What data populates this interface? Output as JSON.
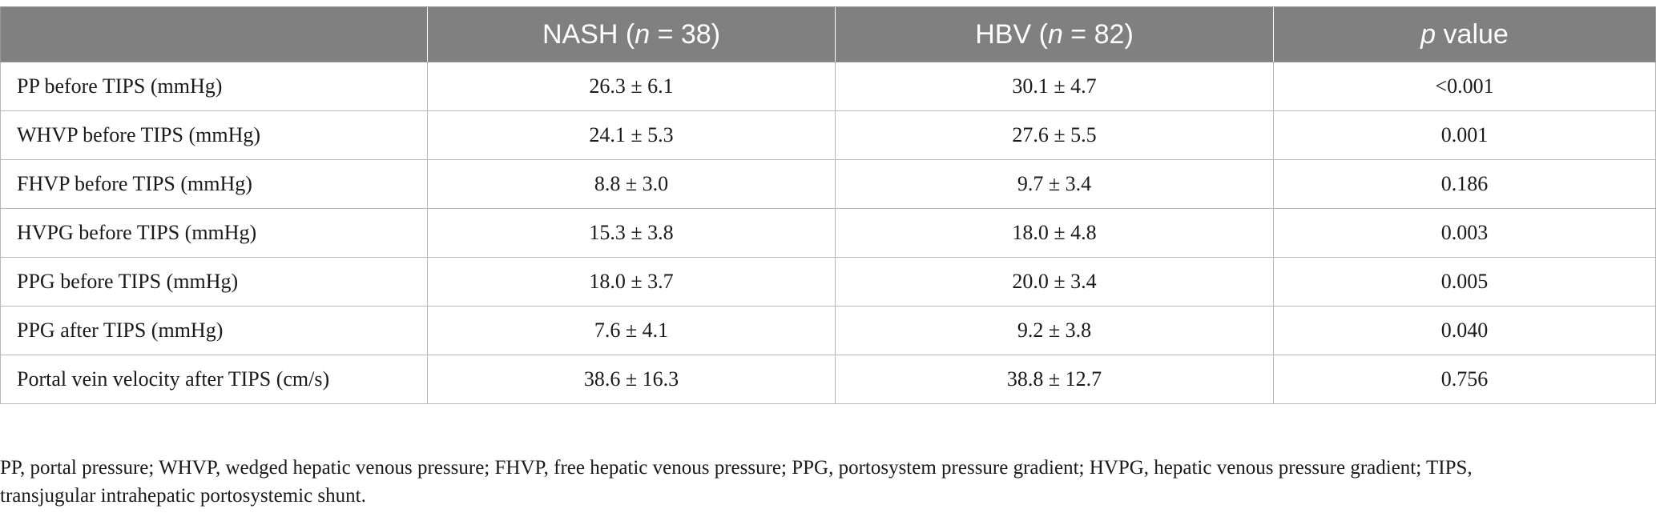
{
  "table": {
    "headers": {
      "col1": {
        "name": "NASH",
        "n_var": "n",
        "eq": " = 38"
      },
      "col2": {
        "name": "HBV",
        "n_var": "n",
        "eq": " = 82"
      },
      "col3": {
        "var": "p",
        "rest": " value"
      }
    },
    "rows": [
      {
        "label": "PP before TIPS (mmHg)",
        "nash": "26.3 ± 6.1",
        "hbv": "30.1 ± 4.7",
        "p": "<0.001"
      },
      {
        "label": "WHVP before TIPS (mmHg)",
        "nash": "24.1 ± 5.3",
        "hbv": "27.6 ± 5.5",
        "p": "0.001"
      },
      {
        "label": "FHVP before TIPS (mmHg)",
        "nash": "8.8 ± 3.0",
        "hbv": "9.7 ± 3.4",
        "p": "0.186"
      },
      {
        "label": "HVPG before TIPS (mmHg)",
        "nash": "15.3 ± 3.8",
        "hbv": "18.0 ± 4.8",
        "p": "0.003"
      },
      {
        "label": "PPG before TIPS (mmHg)",
        "nash": "18.0 ± 3.7",
        "hbv": "20.0 ± 3.4",
        "p": "0.005"
      },
      {
        "label": "PPG after TIPS (mmHg)",
        "nash": "7.6 ± 4.1",
        "hbv": "9.2 ± 3.8",
        "p": "0.040"
      },
      {
        "label": "Portal vein velocity after TIPS (cm/s)",
        "nash": "38.6 ± 16.3",
        "hbv": "38.8 ± 12.7",
        "p": "0.756"
      }
    ]
  },
  "footnote": {
    "line1": "PP, portal pressure; WHVP, wedged hepatic venous pressure; FHVP, free hepatic venous pressure; PPG, portosystem pressure gradient; HVPG, hepatic venous pressure gradient; TIPS,",
    "line2": "transjugular intrahepatic portosystemic shunt."
  }
}
